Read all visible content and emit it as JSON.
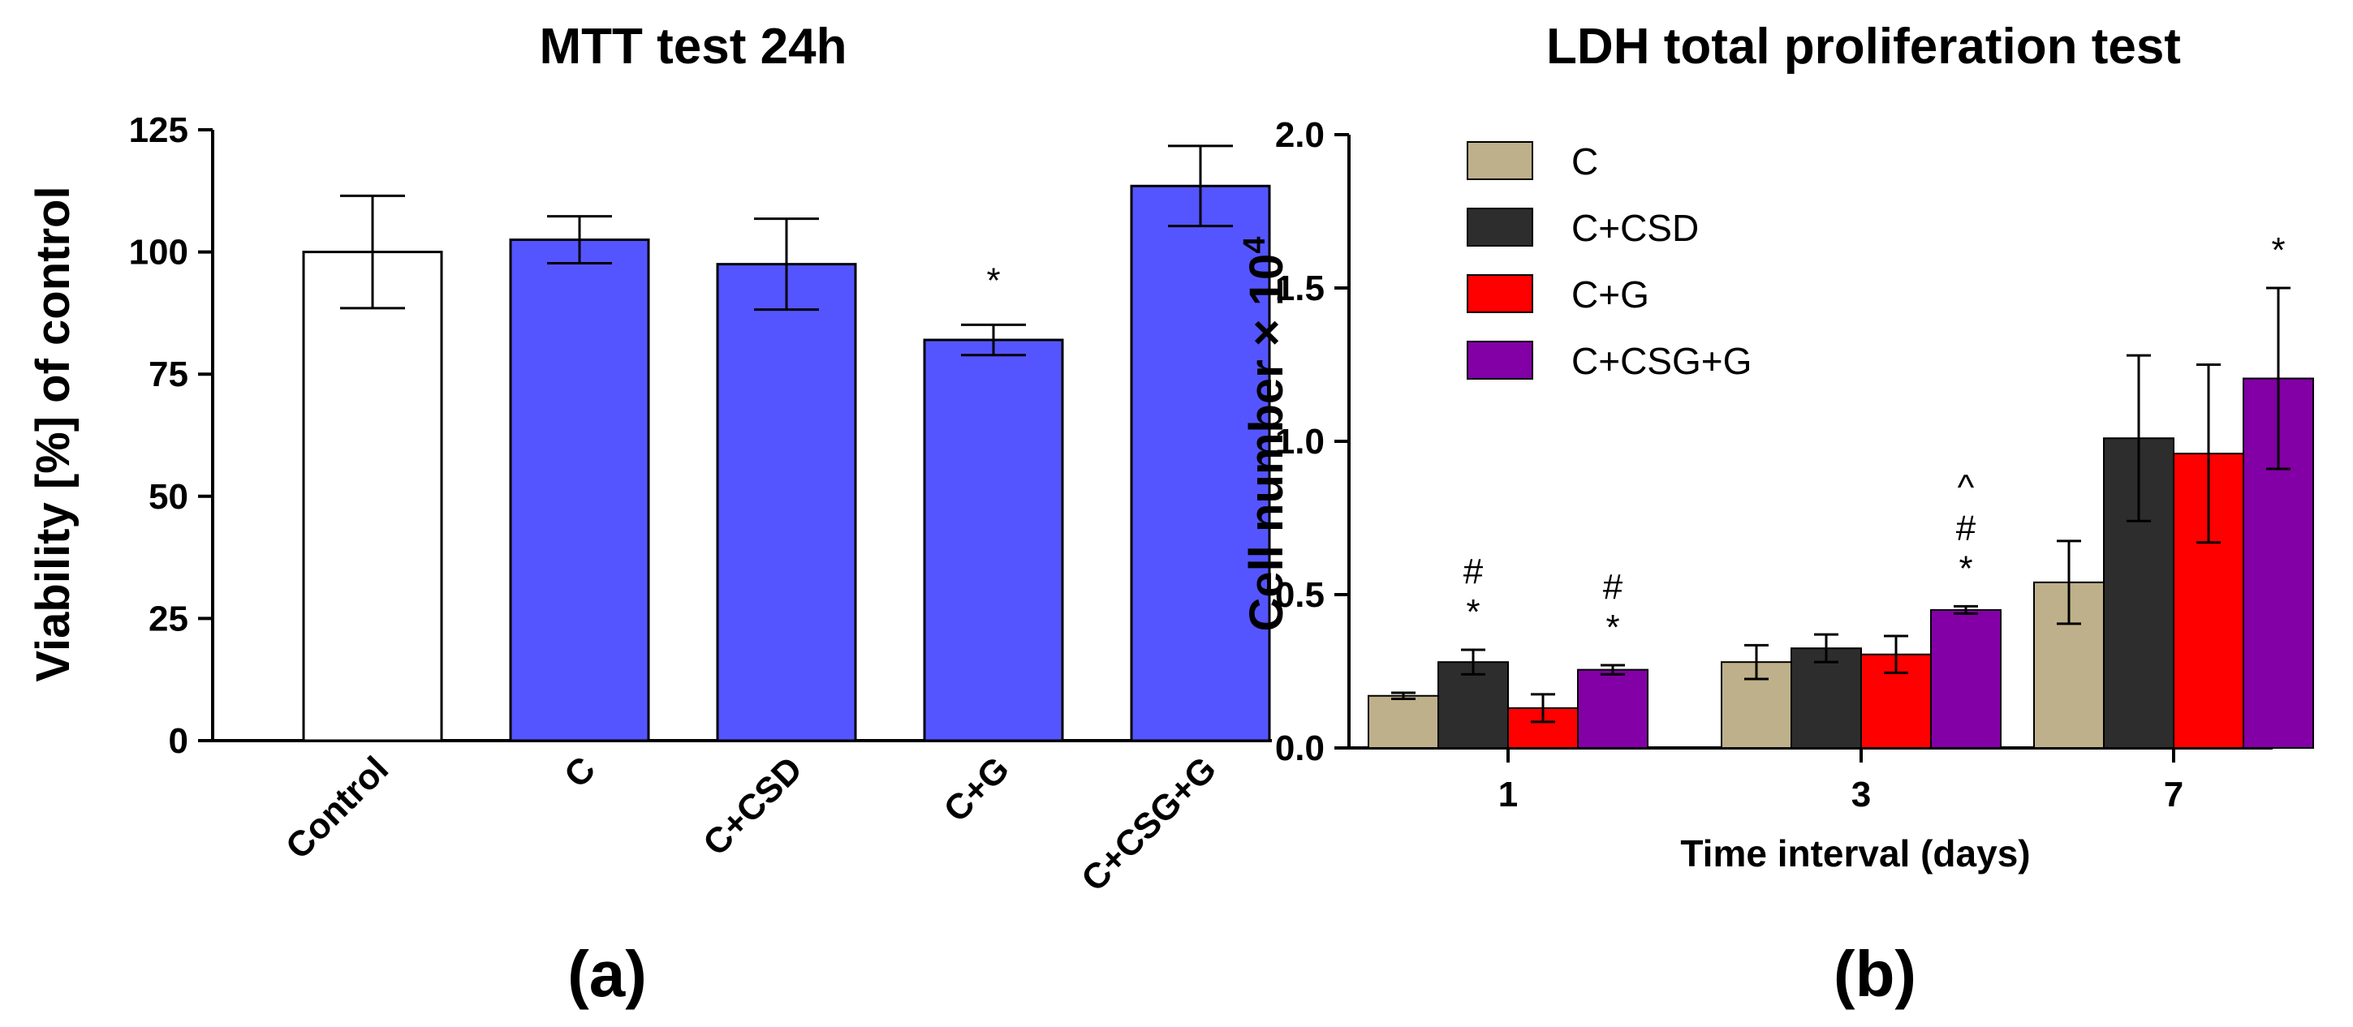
{
  "chart_data": [
    {
      "type": "bar",
      "title": "MTT test 24h",
      "xlabel": "",
      "ylabel": "Viability [%] of control",
      "ylim": [
        0,
        125
      ],
      "yticks": [
        "0",
        "25",
        "50",
        "75",
        "100",
        "125"
      ],
      "categories": [
        "Control",
        "C",
        "C+CSD",
        "C+G",
        "C+CSG+G"
      ],
      "values": [
        100,
        102.5,
        97.5,
        82,
        113.5
      ],
      "errors": [
        11.5,
        4.8,
        9.3,
        3.1,
        8.2
      ],
      "bar_colors": [
        "#ffffff",
        "#5555ff",
        "#5555ff",
        "#5555ff",
        "#5555ff"
      ],
      "annotations": [
        "",
        "",
        "",
        "*",
        ""
      ],
      "panel_label": "(a)"
    },
    {
      "type": "bar",
      "title": "LDH total proliferation test",
      "xlabel": "Time interval (days)",
      "ylabel_main": "Cell number × 10",
      "ylabel_sup": "4",
      "ylim": [
        0,
        2.0
      ],
      "yticks": [
        "0.0",
        "0.5",
        "1.0",
        "1.5",
        "2.0"
      ],
      "categories": [
        "1",
        "3",
        "7"
      ],
      "series": [
        {
          "name": "C",
          "color": "#beb08a",
          "values": [
            0.17,
            0.28,
            0.54
          ],
          "errors": [
            0.01,
            0.055,
            0.135
          ],
          "annotations": [
            "",
            "",
            ""
          ]
        },
        {
          "name": "C+CSD",
          "color": "#2d2d2d",
          "values": [
            0.28,
            0.325,
            1.01
          ],
          "errors": [
            0.04,
            0.045,
            0.27
          ],
          "annotations": [
            "#\n*",
            "",
            ""
          ]
        },
        {
          "name": "C+G",
          "color": "#ff0000",
          "values": [
            0.13,
            0.305,
            0.96
          ],
          "errors": [
            0.045,
            0.06,
            0.29
          ],
          "annotations": [
            "",
            "",
            ""
          ]
        },
        {
          "name": "C+CSG+G",
          "color": "#8200a5",
          "values": [
            0.255,
            0.45,
            1.205
          ],
          "errors": [
            0.015,
            0.012,
            0.295
          ],
          "annotations": [
            "#\n*",
            "^\n#\n*",
            "*"
          ]
        }
      ],
      "panel_label": "(b)"
    }
  ]
}
